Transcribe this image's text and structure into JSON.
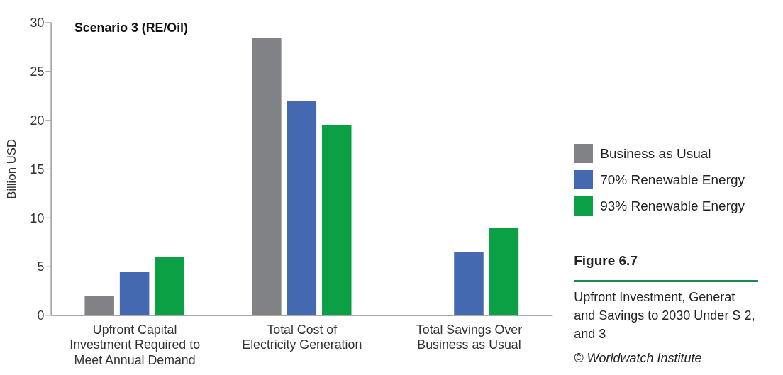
{
  "chart_data": {
    "type": "bar",
    "title": "Scenario 3 (RE/Oil)",
    "ylabel": "Billion USD",
    "categories": [
      "Upfront Capital Investment Required to Meet Annual Demand",
      "Total Cost of Electricity Generation",
      "Total Savings Over Business as Usual"
    ],
    "series": [
      {
        "name": "Business as Usual",
        "color": "#818285",
        "values": [
          2,
          28.4,
          null
        ]
      },
      {
        "name": "70% Renewable Energy",
        "color": "#4469b1",
        "values": [
          4.5,
          22,
          6.5
        ]
      },
      {
        "name": "93% Renewable Energy",
        "color": "#0ca044",
        "values": [
          6,
          19.5,
          9
        ]
      }
    ],
    "ylim": [
      0,
      30
    ],
    "yticks": [
      0,
      5,
      10,
      15,
      20,
      25,
      30
    ],
    "grid": false,
    "legend": "right",
    "annotations": [
      "Figure 6.7",
      "Upfront Investment, Generat and Savings to 2030 Under S 2, and 3",
      "© Worldwatch Institute"
    ]
  }
}
